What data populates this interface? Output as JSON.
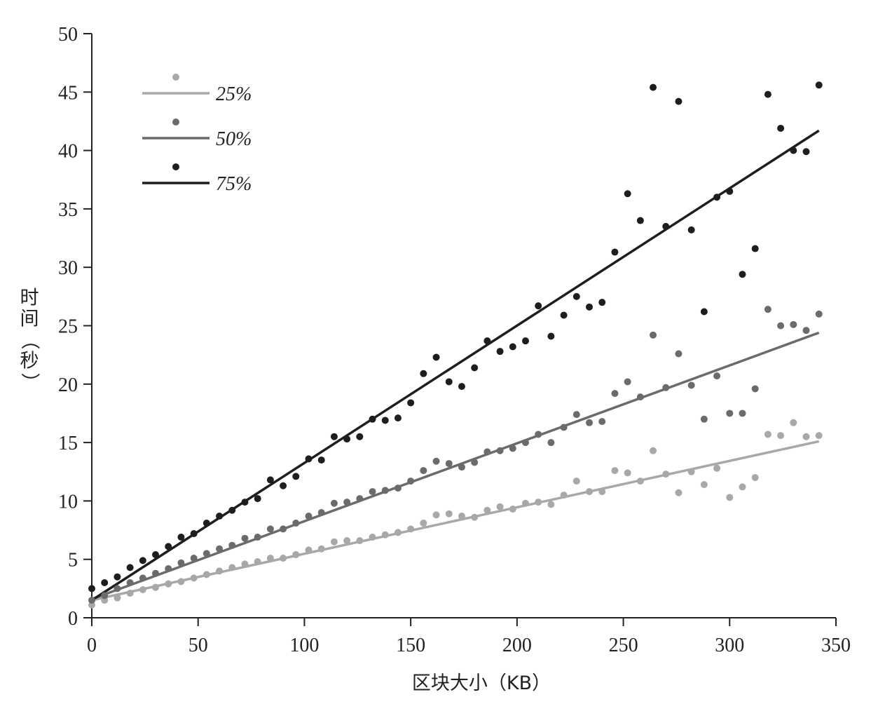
{
  "chart_data": {
    "type": "scatter",
    "title": "",
    "xlabel": "区块大小（KB）",
    "ylabel": "时间（秒）",
    "xlim": [
      0,
      350
    ],
    "ylim": [
      0,
      50
    ],
    "xticks": [
      "0",
      "50",
      "100",
      "150",
      "200",
      "250",
      "300",
      "350"
    ],
    "yticks": [
      "0",
      "5",
      "10",
      "15",
      "20",
      "25",
      "30",
      "35",
      "40",
      "45",
      "50"
    ],
    "grid": false,
    "legend_position": "top-left",
    "series": [
      {
        "name": "25%",
        "color": "#a8a8a8",
        "x": [
          0,
          6,
          12,
          18,
          24,
          30,
          36,
          42,
          48,
          54,
          60,
          66,
          72,
          78,
          84,
          90,
          96,
          102,
          108,
          114,
          120,
          126,
          132,
          138,
          144,
          150,
          156,
          162,
          168,
          174,
          180,
          186,
          192,
          198,
          204,
          210,
          216,
          222,
          228,
          234,
          240,
          246,
          252,
          258,
          264,
          270,
          276,
          282,
          288,
          294,
          300,
          306,
          312,
          318,
          324,
          330,
          336,
          342
        ],
        "y": [
          1.1,
          1.5,
          1.7,
          2.1,
          2.4,
          2.6,
          2.9,
          3.1,
          3.4,
          3.7,
          4.0,
          4.3,
          4.6,
          4.8,
          5.1,
          5.1,
          5.4,
          5.8,
          5.9,
          6.5,
          6.6,
          6.6,
          6.9,
          7.1,
          7.3,
          7.6,
          8.1,
          8.8,
          8.9,
          8.7,
          8.6,
          9.2,
          9.5,
          9.3,
          9.8,
          9.9,
          9.7,
          10.5,
          11.7,
          10.8,
          10.8,
          12.6,
          12.4,
          11.7,
          14.3,
          12.3,
          10.7,
          12.5,
          11.4,
          12.8,
          10.3,
          11.2,
          12.0,
          15.7,
          15.6,
          16.7,
          15.5,
          15.6
        ],
        "fit": [
          1.5,
          15.1
        ]
      },
      {
        "name": "50%",
        "color": "#6b6b6b",
        "x": [
          0,
          6,
          12,
          18,
          24,
          30,
          36,
          42,
          48,
          54,
          60,
          66,
          72,
          78,
          84,
          90,
          96,
          102,
          108,
          114,
          120,
          126,
          132,
          138,
          144,
          150,
          156,
          162,
          168,
          174,
          180,
          186,
          192,
          198,
          204,
          210,
          216,
          222,
          228,
          234,
          240,
          246,
          252,
          258,
          264,
          270,
          276,
          282,
          288,
          294,
          300,
          306,
          312,
          318,
          324,
          330,
          336,
          342
        ],
        "y": [
          1.5,
          1.9,
          2.5,
          3.0,
          3.4,
          3.8,
          4.2,
          4.7,
          5.1,
          5.5,
          5.9,
          6.2,
          6.8,
          6.9,
          7.6,
          7.6,
          8.1,
          8.7,
          9.0,
          9.8,
          9.9,
          10.2,
          10.8,
          10.9,
          11.1,
          11.7,
          12.6,
          13.4,
          13.2,
          12.9,
          13.3,
          14.2,
          14.3,
          14.5,
          15.0,
          15.7,
          15.0,
          16.3,
          17.4,
          16.7,
          16.8,
          19.2,
          20.2,
          18.9,
          24.2,
          19.7,
          22.6,
          19.9,
          17.0,
          20.7,
          17.5,
          17.5,
          19.6,
          26.4,
          25.0,
          25.1,
          24.6,
          26.0
        ],
        "fit": [
          1.6,
          24.4
        ]
      },
      {
        "name": "75%",
        "color": "#1e1e1e",
        "x": [
          0,
          6,
          12,
          18,
          24,
          30,
          36,
          42,
          48,
          54,
          60,
          66,
          72,
          78,
          84,
          90,
          96,
          102,
          108,
          114,
          120,
          126,
          132,
          138,
          144,
          150,
          156,
          162,
          168,
          174,
          180,
          186,
          192,
          198,
          204,
          210,
          216,
          222,
          228,
          234,
          240,
          246,
          252,
          258,
          264,
          270,
          276,
          282,
          288,
          294,
          300,
          306,
          312,
          318,
          324,
          330,
          336,
          342
        ],
        "y": [
          2.5,
          3.0,
          3.5,
          4.3,
          4.9,
          5.4,
          6.1,
          6.9,
          7.2,
          8.1,
          8.7,
          9.2,
          9.9,
          10.2,
          11.8,
          11.3,
          12.1,
          13.6,
          13.5,
          15.5,
          15.3,
          15.5,
          17.0,
          16.9,
          17.1,
          18.4,
          20.9,
          22.3,
          20.2,
          19.8,
          21.4,
          23.7,
          22.8,
          23.2,
          23.7,
          26.7,
          24.1,
          25.9,
          27.5,
          26.6,
          27.0,
          31.3,
          36.3,
          34.0,
          45.4,
          33.5,
          44.2,
          33.2,
          26.2,
          36.0,
          36.5,
          29.4,
          31.6,
          44.8,
          41.9,
          40.0,
          39.9,
          45.6
        ],
        "fit": [
          1.5,
          41.7
        ]
      }
    ]
  }
}
